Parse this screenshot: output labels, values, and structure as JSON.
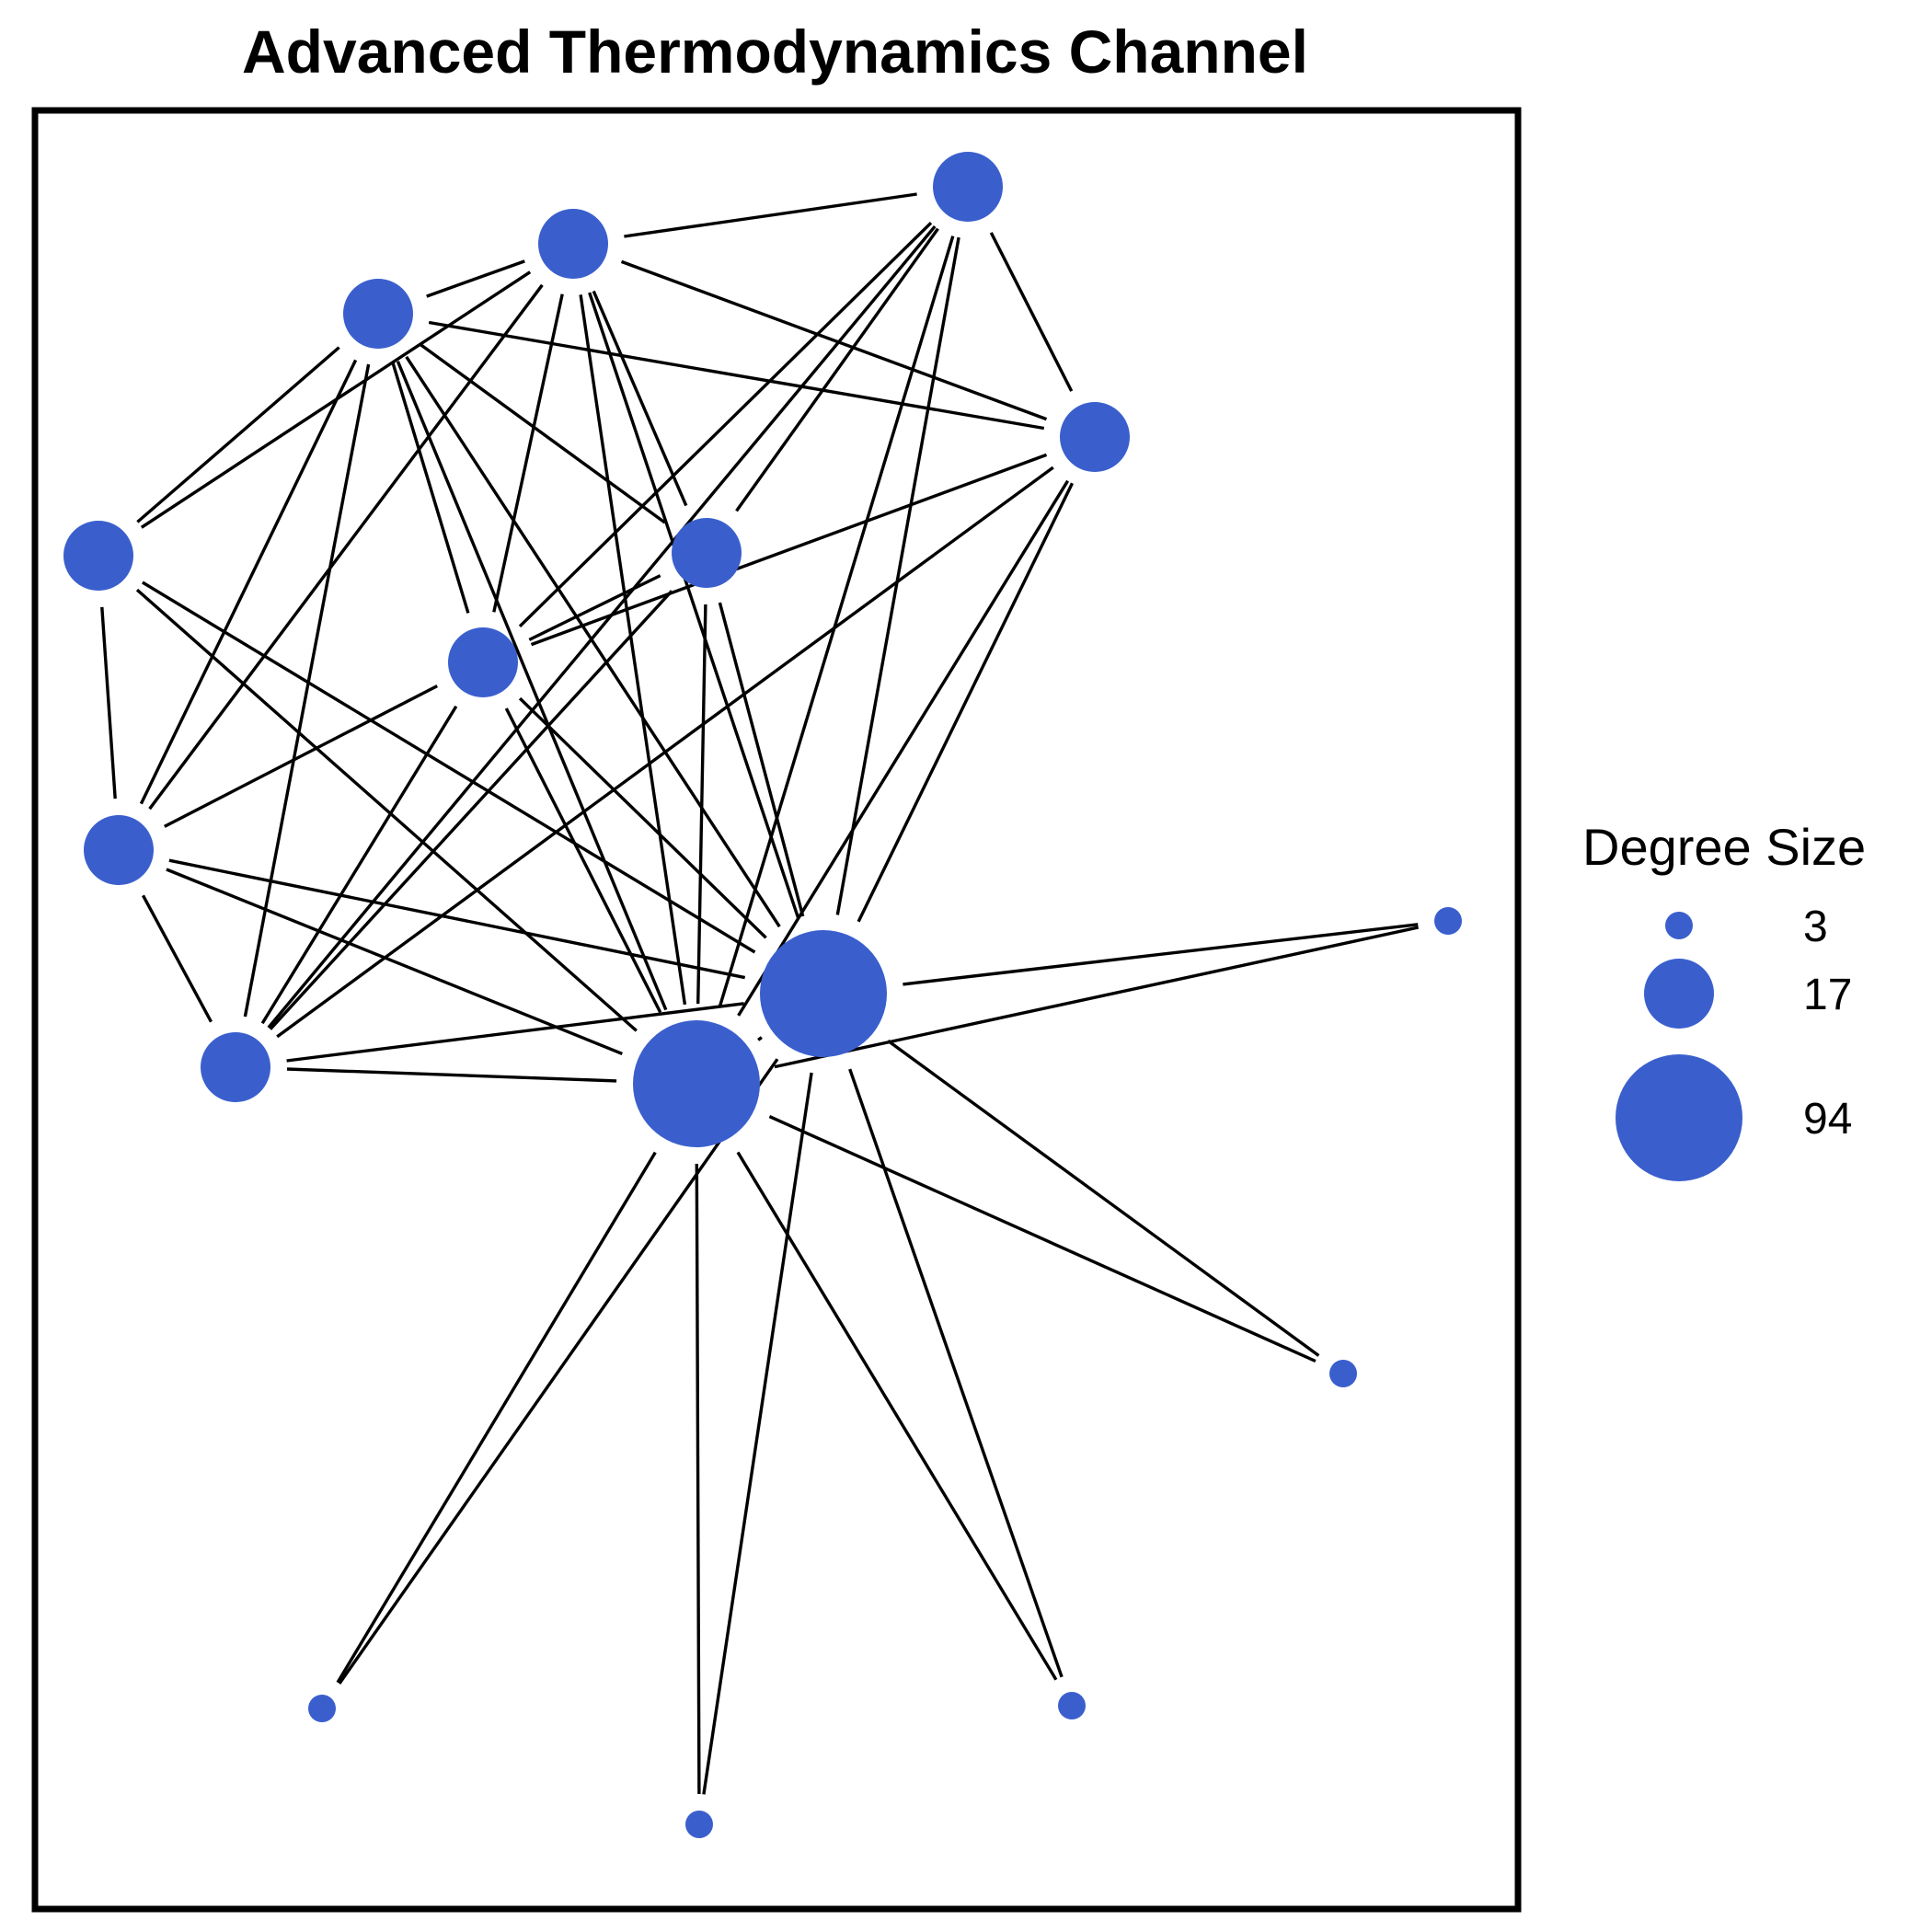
{
  "title": "Advanced Thermodynamics Channel",
  "node_color": "#3a5fcd",
  "edge_color": "#000000",
  "legend": {
    "title": "Degree Size",
    "entries": [
      {
        "label": "3",
        "value": 3
      },
      {
        "label": "17",
        "value": 17
      },
      {
        "label": "94",
        "value": 94
      }
    ]
  },
  "nodes": [
    {
      "id": "n0",
      "degree": 94
    },
    {
      "id": "n1",
      "degree": 94
    },
    {
      "id": "n2",
      "degree": 17
    },
    {
      "id": "n3",
      "degree": 17
    },
    {
      "id": "n4",
      "degree": 17
    },
    {
      "id": "n5",
      "degree": 17
    },
    {
      "id": "n6",
      "degree": 17
    },
    {
      "id": "n7",
      "degree": 17
    },
    {
      "id": "n8",
      "degree": 17
    },
    {
      "id": "n9",
      "degree": 17
    },
    {
      "id": "n10",
      "degree": 17
    },
    {
      "id": "n11",
      "degree": 3
    },
    {
      "id": "n12",
      "degree": 3
    },
    {
      "id": "n13",
      "degree": 3
    },
    {
      "id": "n14",
      "degree": 3
    },
    {
      "id": "n15",
      "degree": 3
    }
  ],
  "edges": [
    [
      "n0",
      "n1"
    ],
    [
      "n0",
      "n2"
    ],
    [
      "n0",
      "n3"
    ],
    [
      "n0",
      "n4"
    ],
    [
      "n0",
      "n5"
    ],
    [
      "n0",
      "n6"
    ],
    [
      "n0",
      "n7"
    ],
    [
      "n0",
      "n8"
    ],
    [
      "n0",
      "n9"
    ],
    [
      "n0",
      "n10"
    ],
    [
      "n0",
      "n11"
    ],
    [
      "n0",
      "n12"
    ],
    [
      "n0",
      "n13"
    ],
    [
      "n0",
      "n14"
    ],
    [
      "n0",
      "n15"
    ],
    [
      "n1",
      "n2"
    ],
    [
      "n1",
      "n3"
    ],
    [
      "n1",
      "n4"
    ],
    [
      "n1",
      "n5"
    ],
    [
      "n1",
      "n6"
    ],
    [
      "n1",
      "n7"
    ],
    [
      "n1",
      "n8"
    ],
    [
      "n1",
      "n9"
    ],
    [
      "n1",
      "n10"
    ],
    [
      "n1",
      "n11"
    ],
    [
      "n1",
      "n12"
    ],
    [
      "n1",
      "n13"
    ],
    [
      "n1",
      "n14"
    ],
    [
      "n1",
      "n15"
    ],
    [
      "n5",
      "n2"
    ],
    [
      "n5",
      "n3"
    ],
    [
      "n5",
      "n6"
    ],
    [
      "n5",
      "n10"
    ],
    [
      "n5",
      "n4"
    ],
    [
      "n4",
      "n6"
    ],
    [
      "n4",
      "n9"
    ],
    [
      "n4",
      "n10"
    ],
    [
      "n2",
      "n3"
    ],
    [
      "n2",
      "n6"
    ],
    [
      "n2",
      "n7"
    ],
    [
      "n2",
      "n9"
    ],
    [
      "n2",
      "n8"
    ],
    [
      "n2",
      "n4"
    ],
    [
      "n3",
      "n6"
    ],
    [
      "n3",
      "n8"
    ],
    [
      "n3",
      "n10"
    ],
    [
      "n3",
      "n7"
    ],
    [
      "n3",
      "n9"
    ],
    [
      "n6",
      "n8"
    ],
    [
      "n6",
      "n10"
    ],
    [
      "n6",
      "n9"
    ],
    [
      "n7",
      "n8"
    ],
    [
      "n8",
      "n10"
    ],
    [
      "n9",
      "n10"
    ]
  ]
}
